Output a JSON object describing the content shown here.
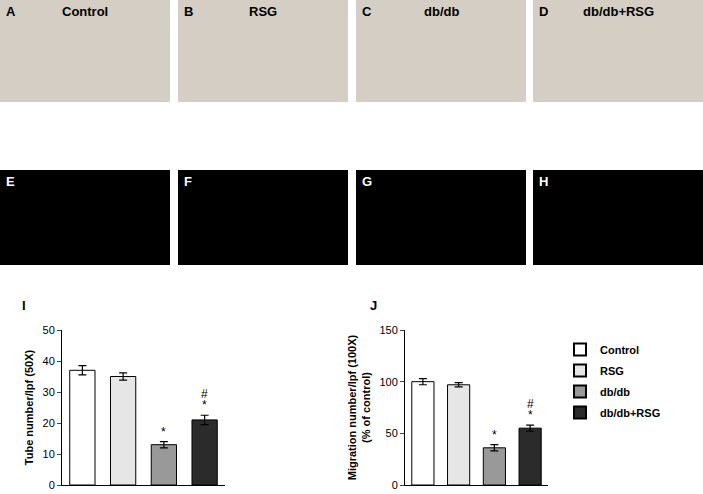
{
  "image_panels": [
    {
      "label": "A",
      "title": "Control",
      "kind": "brightfield"
    },
    {
      "label": "B",
      "title": "RSG",
      "kind": "brightfield"
    },
    {
      "label": "C",
      "title": "db/db",
      "kind": "brightfield"
    },
    {
      "label": "D",
      "title": "db/db+RSG",
      "kind": "brightfield"
    },
    {
      "label": "E",
      "kind": "fluorescence"
    },
    {
      "label": "F",
      "kind": "fluorescence"
    },
    {
      "label": "G",
      "kind": "fluorescence"
    },
    {
      "label": "H",
      "kind": "fluorescence"
    }
  ],
  "chart_data": [
    {
      "type": "bar",
      "panel": "I",
      "categories": [
        "Control",
        "RSG",
        "db/db",
        "db/db+RSG"
      ],
      "values": [
        37,
        35,
        13,
        21
      ],
      "errors": [
        1.5,
        1.2,
        1.0,
        1.5
      ],
      "colors": [
        "#ffffff",
        "#e6e6e6",
        "#999999",
        "#2b2b2b"
      ],
      "ylabel": [
        "Tube number/lpf (50X)"
      ],
      "ylim": [
        0,
        50
      ],
      "yticks": [
        0,
        10,
        20,
        30,
        40,
        50
      ],
      "tick_labels": "y",
      "annotations": [
        {
          "category": "db/db",
          "text": "*"
        },
        {
          "category": "db/db+RSG",
          "text": "*"
        },
        {
          "category": "db/db+RSG",
          "text": "#"
        }
      ]
    },
    {
      "type": "bar",
      "panel": "J",
      "categories": [
        "Control",
        "RSG",
        "db/db",
        "db/db+RSG"
      ],
      "values": [
        100,
        97,
        36,
        55
      ],
      "errors": [
        3,
        2,
        3,
        3
      ],
      "colors": [
        "#ffffff",
        "#e6e6e6",
        "#999999",
        "#2b2b2b"
      ],
      "ylabel": [
        "Migration number/lpf (100X)",
        "(% of control)"
      ],
      "ylim": [
        0,
        150
      ],
      "yticks": [
        0,
        50,
        100,
        150
      ],
      "tick_labels": "y",
      "legend": "right",
      "annotations": [
        {
          "category": "db/db",
          "text": "*"
        },
        {
          "category": "db/db+RSG",
          "text": "*"
        },
        {
          "category": "db/db+RSG",
          "text": "#"
        }
      ]
    }
  ]
}
